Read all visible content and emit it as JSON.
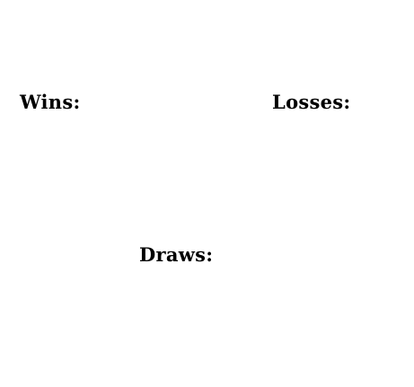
{
  "scoreboard": {
    "wins_label": "Wins:",
    "losses_label": "Losses:",
    "draws_label": "Draws:"
  },
  "colors": {
    "background": "#ffffff",
    "text": "#000000"
  }
}
